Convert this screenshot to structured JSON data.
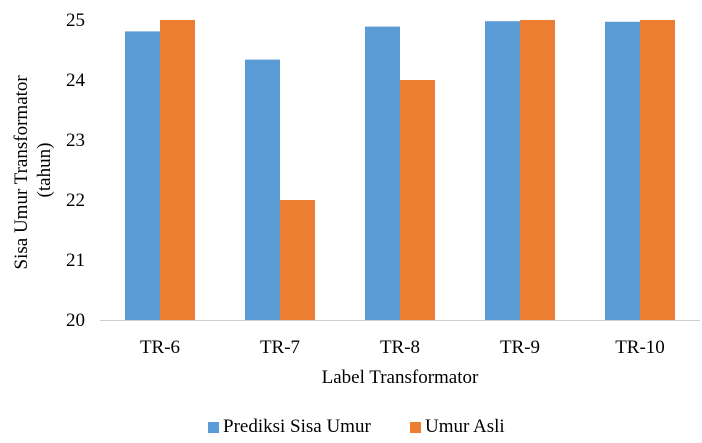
{
  "chart_data": {
    "type": "bar",
    "title": "",
    "xlabel": "Label Transformator",
    "ylabel_lines": [
      "Sisa Umur Transformator",
      "(tahun)"
    ],
    "categories": [
      "TR-6",
      "TR-7",
      "TR-8",
      "TR-9",
      "TR-10"
    ],
    "series": [
      {
        "name": "Prediksi Sisa Umur",
        "color": "#5B9BD5",
        "values": [
          24.81,
          24.34,
          24.89,
          24.98,
          24.97
        ]
      },
      {
        "name": "Umur Asli",
        "color": "#ED7D31",
        "values": [
          25,
          22,
          24,
          25,
          25
        ]
      }
    ],
    "ylim": [
      20,
      25
    ],
    "yticks": [
      20,
      21,
      22,
      23,
      24,
      25
    ],
    "grid": false,
    "legend_position": "bottom"
  }
}
